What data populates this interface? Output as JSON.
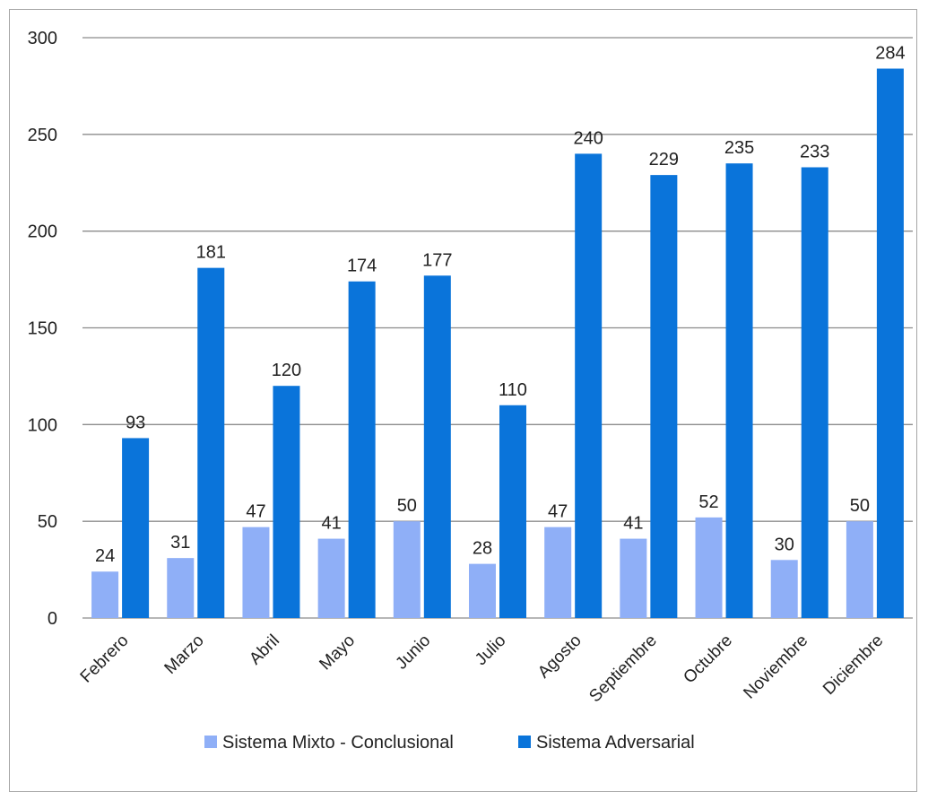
{
  "chart_data": {
    "type": "bar",
    "categories": [
      "Febrero",
      "Marzo",
      "Abril",
      "Mayo",
      "Junio",
      "Julio",
      "Agosto",
      "Septiembre",
      "Octubre",
      "Noviembre",
      "Diciembre"
    ],
    "series": [
      {
        "name": "Sistema Mixto - Conclusional",
        "color": "#8faff7",
        "values": [
          24,
          31,
          47,
          41,
          50,
          28,
          47,
          41,
          52,
          30,
          50
        ]
      },
      {
        "name": "Sistema Adversarial",
        "color": "#0a74da",
        "values": [
          93,
          181,
          120,
          174,
          177,
          110,
          240,
          229,
          235,
          233,
          284
        ]
      }
    ],
    "title": "",
    "xlabel": "",
    "ylabel": "",
    "ylim": [
      0,
      300
    ],
    "yticks": [
      0,
      50,
      100,
      150,
      200,
      250,
      300
    ],
    "grid": true,
    "legend_position": "bottom",
    "data_labels": true,
    "gridline_color": "#8c8c8c"
  }
}
